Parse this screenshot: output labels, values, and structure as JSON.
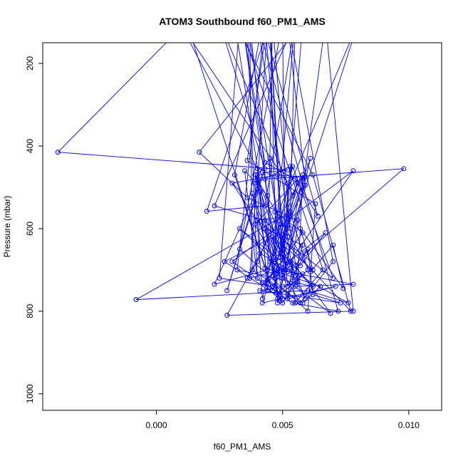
{
  "chart_data": {
    "type": "scatter",
    "title": "ATOM3 Southbound f60_PM1_AMS",
    "xlabel": "f60_PM1_AMS",
    "ylabel": "Pressure (mbar)",
    "xlim": [
      -0.0045,
      0.0113
    ],
    "ylim": [
      1040,
      150
    ],
    "y_reversed": true,
    "grid": false,
    "legend": "none",
    "x_ticks": [
      0.0,
      0.005,
      0.01
    ],
    "x_tick_labels": [
      "0.000",
      "0.005",
      "0.010"
    ],
    "y_ticks": [
      200,
      400,
      600,
      800,
      1000
    ],
    "y_tick_labels": [
      "200",
      "400",
      "600",
      "800",
      "1000"
    ],
    "series": [
      {
        "color": "#0000ff",
        "marker": "open-circle",
        "line": true,
        "points": [
          [
            0.0036,
            720
          ],
          [
            0.004,
            680
          ],
          [
            0.008,
            100
          ],
          [
            0.0046,
            750
          ],
          [
            0.0012,
            100
          ],
          [
            -0.0039,
            415
          ],
          [
            0.0052,
            458
          ],
          [
            0.0042,
            465
          ],
          [
            0.0028,
            750
          ],
          [
            0.0043,
            455
          ],
          [
            0.0025,
            100
          ],
          [
            0.0054,
            520
          ],
          [
            0.0056,
            490
          ],
          [
            0.0047,
            630
          ],
          [
            0.0055,
            100
          ],
          [
            0.0043,
            545
          ],
          [
            0.002,
            558
          ],
          [
            0.0045,
            100
          ],
          [
            0.0049,
            590
          ],
          [
            0.005,
            660
          ],
          [
            0.0036,
            100
          ],
          [
            0.004,
            720
          ],
          [
            0.0035,
            460
          ],
          [
            0.0044,
            520
          ],
          [
            0.0034,
            100
          ],
          [
            0.0043,
            440
          ],
          [
            0.0055,
            480
          ],
          [
            0.0064,
            570
          ],
          [
            0.0042,
            100
          ],
          [
            0.0031,
            470
          ],
          [
            0.0043,
            695
          ],
          [
            0.0065,
            740
          ],
          [
            0.0058,
            780
          ],
          [
            0.0038,
            700
          ],
          [
            0.0037,
            100
          ],
          [
            0.0048,
            770
          ],
          [
            0.0041,
            510
          ],
          [
            0.0044,
            750
          ],
          [
            0.004,
            455
          ],
          [
            0.0009,
            100
          ],
          [
            0.0052,
            490
          ],
          [
            0.0052,
            620
          ],
          [
            0.0044,
            730
          ],
          [
            0.0046,
            100
          ],
          [
            0.0053,
            600
          ],
          [
            0.0027,
            680
          ],
          [
            0.005,
            770
          ],
          [
            0.0043,
            480
          ],
          [
            0.0098,
            455
          ],
          [
            0.0059,
            660
          ],
          [
            0.0052,
            740
          ],
          [
            0.0043,
            100
          ],
          [
            0.0032,
            700
          ],
          [
            0.0062,
            740
          ],
          [
            0.0053,
            680
          ],
          [
            0.0055,
            780
          ],
          [
            0.0066,
            700
          ],
          [
            0.0033,
            100
          ],
          [
            0.0025,
            720
          ],
          [
            0.0046,
            740
          ],
          [
            0.0078,
            460
          ],
          [
            0.003,
            680
          ],
          [
            0.0054,
            780
          ],
          [
            0.0072,
            800
          ],
          [
            0.004,
            100
          ],
          [
            0.0056,
            720
          ],
          [
            0.0049,
            640
          ],
          [
            0.0061,
            430
          ],
          [
            0.0048,
            780
          ],
          [
            0.0045,
            100
          ],
          [
            0.005,
            650
          ],
          [
            0.0056,
            480
          ],
          [
            0.0039,
            590
          ],
          [
            0.0057,
            780
          ],
          [
            0.007,
            680
          ],
          [
            0.0052,
            100
          ],
          [
            0.0059,
            495
          ],
          [
            0.0044,
            700
          ],
          [
            0.0023,
            735
          ],
          [
            0.004,
            505
          ],
          [
            0.0044,
            100
          ],
          [
            0.0036,
            435
          ],
          [
            0.0063,
            540
          ],
          [
            0.006,
            800
          ],
          [
            0.0033,
            650
          ],
          [
            0.005,
            100
          ],
          [
            0.0051,
            700
          ],
          [
            0.0058,
            470
          ],
          [
            0.0028,
            810
          ],
          [
            0.0078,
            800
          ],
          [
            0.0067,
            100
          ],
          [
            0.0052,
            770
          ],
          [
            0.0058,
            640
          ],
          [
            0.0043,
            600
          ],
          [
            0.0047,
            720
          ],
          [
            0.0031,
            100
          ],
          [
            0.0062,
            470
          ],
          [
            0.0077,
            800
          ],
          [
            0.0043,
            580
          ],
          [
            0.0023,
            545
          ],
          [
            0.0055,
            100
          ],
          [
            0.0053,
            570
          ],
          [
            0.004,
            580
          ],
          [
            0.007,
            720
          ],
          [
            0.0054,
            450
          ],
          [
            0.0042,
            770
          ],
          [
            0.0039,
            490
          ],
          [
            0.0053,
            450
          ],
          [
            0.005,
            670
          ],
          [
            0.0047,
            680
          ],
          [
            0.0033,
            600
          ],
          [
            0.0052,
            690
          ],
          [
            0.003,
            490
          ],
          [
            0.0048,
            470
          ],
          [
            0.0059,
            475
          ],
          [
            0.0042,
            780
          ],
          [
            0.0071,
            740
          ],
          [
            0.0052,
            770
          ],
          [
            0.0045,
            430
          ],
          [
            0.004,
            470
          ],
          [
            0.0037,
            720
          ],
          [
            0.0049,
            700
          ],
          [
            0.0038,
            515
          ],
          [
            0.0049,
            775
          ],
          [
            0.0058,
            100
          ],
          [
            0.0017,
            415
          ],
          [
            0.0036,
            525
          ],
          [
            0.0056,
            580
          ],
          [
            0.005,
            720
          ],
          [
            0.0047,
            560
          ],
          [
            0.0058,
            610
          ],
          [
            0.0044,
            725
          ],
          [
            0.0048,
            750
          ],
          [
            0.0049,
            760
          ],
          [
            0.006,
            700
          ],
          [
            0.0053,
            560
          ],
          [
            -0.0008,
            772
          ],
          [
            0.006,
            750
          ],
          [
            0.0076,
            780
          ],
          [
            0.0041,
            660
          ],
          [
            0.004,
            480
          ],
          [
            0.0059,
            770
          ],
          [
            0.0046,
            620
          ],
          [
            0.0048,
            710
          ],
          [
            0.0069,
            805
          ],
          [
            0.0055,
            690
          ],
          [
            0.006,
            650
          ],
          [
            0.0062,
            760
          ],
          [
            0.0073,
            780
          ],
          [
            0.0041,
            750
          ],
          [
            0.005,
            740
          ],
          [
            0.0056,
            730
          ],
          [
            0.0058,
            470
          ],
          [
            0.0045,
            680
          ],
          [
            0.0052,
            705
          ],
          [
            0.0039,
            470
          ],
          [
            0.0061,
            705
          ],
          [
            0.007,
            640
          ],
          [
            0.0074,
            745
          ],
          [
            0.0057,
            600
          ],
          [
            0.0062,
            700
          ],
          [
            0.005,
            640
          ],
          [
            0.0051,
            590
          ],
          [
            0.0055,
            740
          ],
          [
            0.0078,
            735
          ],
          [
            0.0048,
            700
          ],
          [
            0.0058,
            710
          ],
          [
            0.0052,
            760
          ],
          [
            0.005,
            780
          ],
          [
            0.0042,
            730
          ],
          [
            0.0067,
            610
          ],
          [
            0.0057,
            690
          ],
          [
            0.0048,
            660
          ]
        ]
      }
    ]
  }
}
